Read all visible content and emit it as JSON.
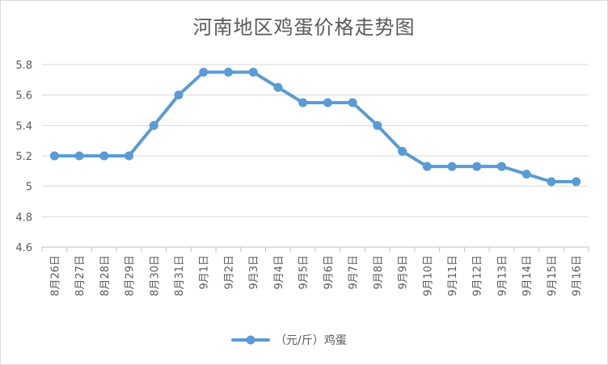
{
  "chart_data": {
    "type": "line",
    "title": "河南地区鸡蛋价格走势图",
    "xlabel": "",
    "ylabel": "",
    "categories": [
      "8月26日",
      "8月27日",
      "8月28日",
      "8月29日",
      "8月30日",
      "8月31日",
      "9月1日",
      "9月2日",
      "9月3日",
      "9月4日",
      "9月5日",
      "9月6日",
      "9月7日",
      "9月8日",
      "9月9日",
      "9月10日",
      "9月11日",
      "9月12日",
      "9月13日",
      "9月14日",
      "9月15日",
      "9月16日"
    ],
    "series": [
      {
        "name": "（元/斤）鸡蛋",
        "color": "#5b9bd5",
        "values": [
          5.2,
          5.2,
          5.2,
          5.2,
          5.4,
          5.6,
          5.75,
          5.75,
          5.75,
          5.65,
          5.55,
          5.55,
          5.55,
          5.4,
          5.23,
          5.13,
          5.13,
          5.13,
          5.13,
          5.08,
          5.03,
          5.03
        ]
      }
    ],
    "ylim": [
      4.6,
      5.8
    ],
    "yticks": [
      "4.6",
      "4.8",
      "5",
      "5.2",
      "5.4",
      "5.6",
      "5.8"
    ],
    "grid": true,
    "legend": "bottom"
  }
}
